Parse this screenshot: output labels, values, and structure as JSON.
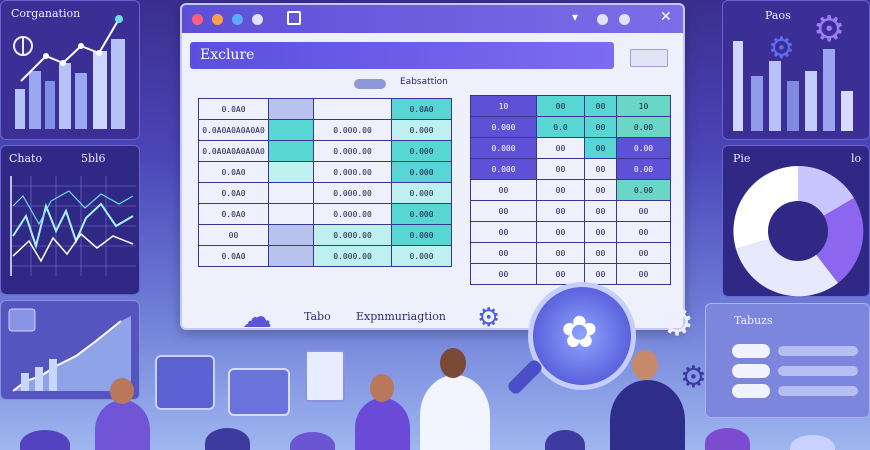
{
  "left_top": {
    "title": "Corganation"
  },
  "left_mid": {
    "title": "Chato",
    "value": "5bl6"
  },
  "right_top": {
    "title": "Paos"
  },
  "right_mid": {
    "title": "Pie",
    "value": "lo"
  },
  "right_bot": {
    "title": "Tabuzs"
  },
  "main": {
    "app_title": "Exclure",
    "subheader": "Eabsattion",
    "caption1": "Tabo",
    "caption2": "Expnmuriagtion"
  },
  "table_left": [
    [
      "0.0A0",
      "",
      "",
      "0.0A0"
    ],
    [
      "0.0A0A0A0A0A0",
      "",
      "0.000.00",
      "0.000"
    ],
    [
      "0.0A0A0A0A0A0",
      "",
      "0.000.00",
      "0.000"
    ],
    [
      "0.0A0",
      "",
      "0.000.00",
      "0.000"
    ],
    [
      "0.0A0",
      "",
      "0.000.00",
      "0.000"
    ],
    [
      "0.0A0",
      "",
      "0.000.00",
      "0.000"
    ],
    [
      "00",
      "",
      "0.000.00",
      "0.000"
    ],
    [
      "0.0A0",
      "",
      "0.000.00",
      "0.000"
    ]
  ],
  "table_right": [
    [
      "10",
      "00",
      "00",
      "10"
    ],
    [
      "0.000",
      "0.0",
      "00",
      "0.00"
    ],
    [
      "0.000",
      "00",
      "00",
      "0.00"
    ],
    [
      "0.000",
      "00",
      "00",
      "0.00"
    ],
    [
      "00",
      "00",
      "00",
      "0.00"
    ],
    [
      "00",
      "00",
      "00",
      "00"
    ],
    [
      "00",
      "00",
      "00",
      "00"
    ],
    [
      "00",
      "00",
      "00",
      "00"
    ],
    [
      "00",
      "00",
      "00",
      "00"
    ]
  ],
  "colors": {
    "accent": "#5c4fd6",
    "teal": "#58d6d3",
    "bg": "#3a2f8f"
  }
}
